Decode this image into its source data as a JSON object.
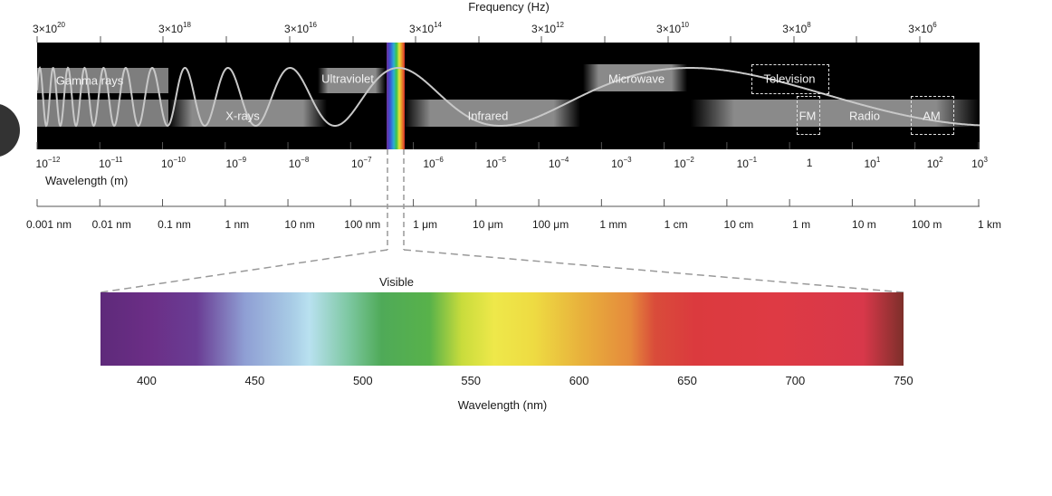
{
  "frequency_axis": {
    "title": "Frequency (Hz)",
    "labels": [
      {
        "base": "3×10",
        "exp": "20"
      },
      {
        "base": "3×10",
        "exp": "18"
      },
      {
        "base": "3×10",
        "exp": "16"
      },
      {
        "base": "3×10",
        "exp": "14"
      },
      {
        "base": "3×10",
        "exp": "12"
      },
      {
        "base": "3×10",
        "exp": "10"
      },
      {
        "base": "3×10",
        "exp": "8"
      },
      {
        "base": "3×10",
        "exp": "6"
      }
    ]
  },
  "regions": {
    "gamma": "Gamma rays",
    "xrays": "X-rays",
    "ultraviolet": "Ultraviolet",
    "infrared": "Infrared",
    "microwave": "Microwave",
    "television": "Television",
    "fm": "FM",
    "radio": "Radio",
    "am": "AM"
  },
  "wavelength_axis": {
    "title": "Wavelength (m)",
    "exponents": [
      {
        "base": "10",
        "exp": "−12"
      },
      {
        "base": "10",
        "exp": "−11"
      },
      {
        "base": "10",
        "exp": "−10"
      },
      {
        "base": "10",
        "exp": "−9"
      },
      {
        "base": "10",
        "exp": "−8"
      },
      {
        "base": "10",
        "exp": "−7"
      },
      {
        "base": "10",
        "exp": "−6"
      },
      {
        "base": "10",
        "exp": "−5"
      },
      {
        "base": "10",
        "exp": "−4"
      },
      {
        "base": "10",
        "exp": "−3"
      },
      {
        "base": "10",
        "exp": "−2"
      },
      {
        "base": "10",
        "exp": "−1"
      },
      {
        "base": "1",
        "exp": ""
      },
      {
        "base": "10",
        "exp": "1"
      },
      {
        "base": "10",
        "exp": "2"
      },
      {
        "base": "10",
        "exp": "3"
      }
    ],
    "units": [
      "0.001 nm",
      "0.01 nm",
      "0.1 nm",
      "1 nm",
      "10 nm",
      "100 nm",
      "1 μm",
      "10 μm",
      "100 μm",
      "1 mm",
      "1 cm",
      "10 cm",
      "1 m",
      "10 m",
      "100 m",
      "1 km"
    ]
  },
  "visible": {
    "label": "Visible",
    "ticks": [
      "400",
      "450",
      "500",
      "550",
      "600",
      "650",
      "700",
      "750"
    ],
    "axis_title": "Wavelength (nm)"
  },
  "colors": {
    "band_background": "#000000",
    "wave": "#bdbdbd",
    "strip": "#8f8f8f"
  }
}
